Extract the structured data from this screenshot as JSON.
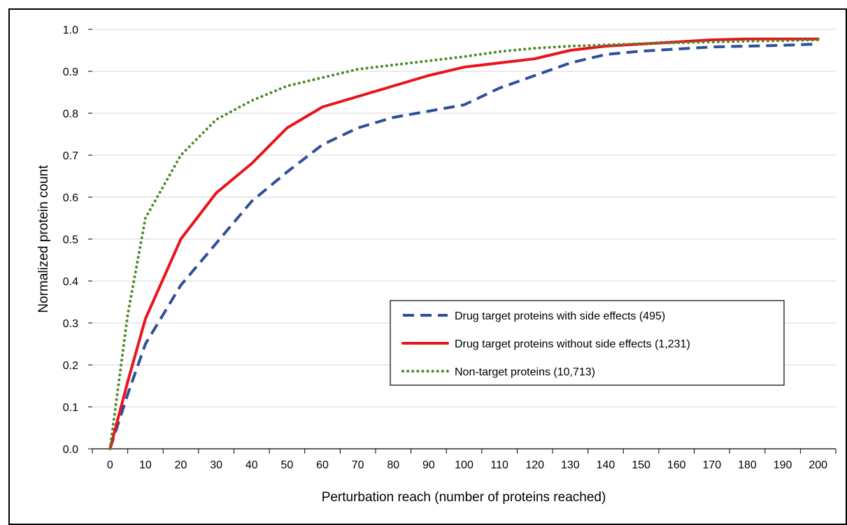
{
  "chart_data": {
    "type": "line",
    "title": "",
    "xlabel": "Perturbation reach (number of proteins reached)",
    "ylabel": "Normalized protein count",
    "xlim": [
      -5,
      205
    ],
    "ylim": [
      0,
      1.0
    ],
    "xticks": [
      0,
      10,
      20,
      30,
      40,
      50,
      60,
      70,
      80,
      90,
      100,
      110,
      120,
      130,
      140,
      150,
      160,
      170,
      180,
      190,
      200
    ],
    "yticks": [
      "0.0",
      "0.1",
      "0.2",
      "0.3",
      "0.4",
      "0.5",
      "0.6",
      "0.7",
      "0.8",
      "0.9",
      "1.0"
    ],
    "grid": "horizontal",
    "legend_position": "center-right",
    "series": [
      {
        "name": "Drug target proteins with side effects (495)",
        "color": "#2e4f9b",
        "style": "dashed",
        "x": [
          0,
          5,
          10,
          20,
          30,
          40,
          50,
          60,
          70,
          80,
          90,
          100,
          110,
          120,
          130,
          140,
          150,
          160,
          170,
          180,
          190,
          200
        ],
        "y": [
          0.0,
          0.13,
          0.25,
          0.39,
          0.49,
          0.59,
          0.66,
          0.725,
          0.765,
          0.79,
          0.805,
          0.82,
          0.86,
          0.89,
          0.92,
          0.94,
          0.948,
          0.953,
          0.958,
          0.96,
          0.962,
          0.965
        ]
      },
      {
        "name": "Drug target proteins without side effects (1,231)",
        "color": "#e8141b",
        "style": "solid",
        "x": [
          0,
          5,
          10,
          20,
          30,
          40,
          50,
          60,
          70,
          80,
          90,
          100,
          110,
          120,
          130,
          140,
          150,
          160,
          170,
          180,
          190,
          200
        ],
        "y": [
          0.0,
          0.16,
          0.31,
          0.5,
          0.61,
          0.68,
          0.765,
          0.815,
          0.84,
          0.865,
          0.89,
          0.91,
          0.92,
          0.93,
          0.95,
          0.96,
          0.965,
          0.97,
          0.975,
          0.977,
          0.977,
          0.977
        ]
      },
      {
        "name": "Non-target proteins (10,713)",
        "color": "#4d8a2b",
        "style": "dotted",
        "x": [
          0,
          5,
          10,
          20,
          30,
          40,
          50,
          60,
          70,
          80,
          90,
          100,
          110,
          120,
          130,
          140,
          150,
          160,
          170,
          180,
          190,
          200
        ],
        "y": [
          0.0,
          0.32,
          0.55,
          0.7,
          0.785,
          0.83,
          0.865,
          0.885,
          0.905,
          0.915,
          0.925,
          0.935,
          0.947,
          0.955,
          0.96,
          0.963,
          0.966,
          0.968,
          0.97,
          0.972,
          0.973,
          0.975
        ]
      }
    ]
  }
}
